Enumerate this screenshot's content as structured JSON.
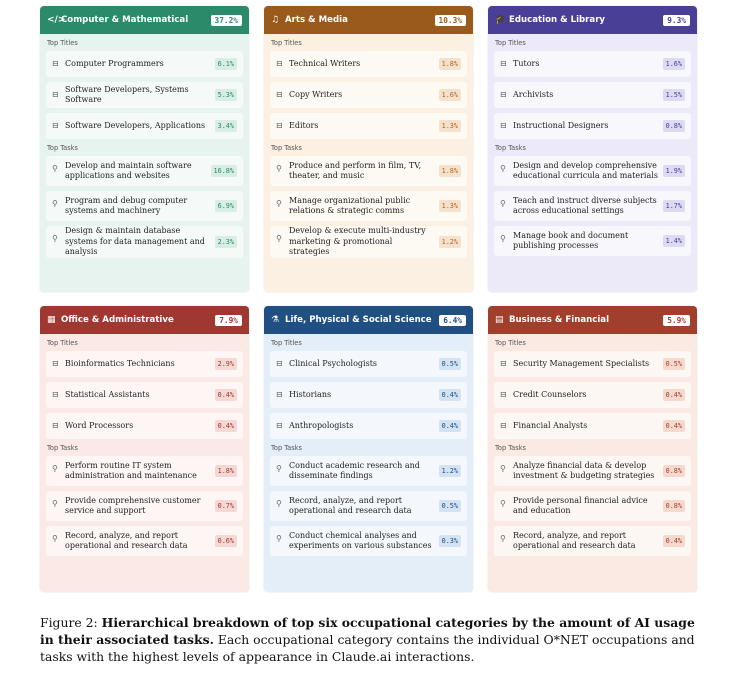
{
  "colors": {
    "computer": {
      "head": "#2a8a6a",
      "bg": "#e7f3ee",
      "accent": "#2a8a6a",
      "chip": "#d8ede4"
    },
    "arts": {
      "head": "#9a5a1c",
      "bg": "#fbf0e2",
      "accent": "#b0662a",
      "chip": "#f6e2cc"
    },
    "education": {
      "head": "#4a3f96",
      "bg": "#eceaf8",
      "accent": "#4a3f96",
      "chip": "#dddaf3"
    },
    "office": {
      "head": "#a03832",
      "bg": "#fbe9e6",
      "accent": "#a03832",
      "chip": "#f5d8d4"
    },
    "life": {
      "head": "#204f83",
      "bg": "#e4eef8",
      "accent": "#204f83",
      "chip": "#d3e3f3"
    },
    "business": {
      "head": "#a0402c",
      "bg": "#fbeae4",
      "accent": "#a0402c",
      "chip": "#f5d9cf"
    }
  },
  "labels": {
    "top_titles": "Top Titles",
    "top_tasks": "Top Tasks"
  },
  "categories": [
    {
      "name": "Computer & Mathematical",
      "pct": "37.2%",
      "icon": "code-icon",
      "glyph": "</>",
      "titles": [
        {
          "text": "Computer Programmers",
          "value": "6.1%"
        },
        {
          "text": "Software Developers, Systems Software",
          "value": "5.3%"
        },
        {
          "text": "Software Developers, Applications",
          "value": "3.4%"
        }
      ],
      "tasks": [
        {
          "text": "Develop and maintain software applications and websites",
          "value": "16.8%"
        },
        {
          "text": "Program and debug computer systems and machinery",
          "value": "6.9%"
        },
        {
          "text": "Design & maintain database systems for data management and analysis",
          "value": "2.3%"
        }
      ]
    },
    {
      "name": "Arts & Media",
      "pct": "10.3%",
      "icon": "music-note-icon",
      "glyph": "♫",
      "titles": [
        {
          "text": "Technical Writers",
          "value": "1.8%"
        },
        {
          "text": "Copy Writers",
          "value": "1.6%"
        },
        {
          "text": "Editors",
          "value": "1.3%"
        }
      ],
      "tasks": [
        {
          "text": "Produce and perform in film, TV, theater, and music",
          "value": "1.8%"
        },
        {
          "text": "Manage organizational public relations & strategic comms",
          "value": "1.3%"
        },
        {
          "text": "Develop & execute multi-industry marketing & promotional strategies",
          "value": "1.2%"
        }
      ]
    },
    {
      "name": "Education & Library",
      "pct": "9.3%",
      "icon": "graduation-cap-icon",
      "glyph": "🎓",
      "titles": [
        {
          "text": "Tutors",
          "value": "1.6%"
        },
        {
          "text": "Archivists",
          "value": "1.5%"
        },
        {
          "text": "Instructional Designers",
          "value": "0.8%"
        }
      ],
      "tasks": [
        {
          "text": "Design and develop comprehensive educational curricula and materials",
          "value": "1.9%"
        },
        {
          "text": "Teach and instruct diverse subjects across educational settings",
          "value": "1.7%"
        },
        {
          "text": "Manage book and document publishing processes",
          "value": "1.4%"
        }
      ]
    },
    {
      "name": "Office & Administrative",
      "pct": "7.9%",
      "icon": "building-icon",
      "glyph": "▦",
      "titles": [
        {
          "text": "Bioinformatics Technicians",
          "value": "2.9%"
        },
        {
          "text": "Statistical Assistants",
          "value": "0.4%"
        },
        {
          "text": "Word Processors",
          "value": "0.4%"
        }
      ],
      "tasks": [
        {
          "text": "Perform routine IT system administration and maintenance",
          "value": "1.8%"
        },
        {
          "text": "Provide comprehensive customer service and support",
          "value": "0.7%"
        },
        {
          "text": "Record, analyze, and report operational and research data",
          "value": "0.6%"
        }
      ]
    },
    {
      "name": "Life, Physical & Social Science",
      "pct": "6.4%",
      "icon": "flask-icon",
      "glyph": "⚗",
      "titles": [
        {
          "text": "Clinical Psychologists",
          "value": "0.5%"
        },
        {
          "text": "Historians",
          "value": "0.4%"
        },
        {
          "text": "Anthropologists",
          "value": "0.4%"
        }
      ],
      "tasks": [
        {
          "text": "Conduct academic research and disseminate findings",
          "value": "1.2%"
        },
        {
          "text": "Record, analyze, and report operational and research data",
          "value": "0.5%"
        },
        {
          "text": "Conduct chemical analyses and experiments on various substances",
          "value": "0.3%"
        }
      ]
    },
    {
      "name": "Business & Financial",
      "pct": "5.9%",
      "icon": "finance-chart-icon",
      "glyph": "▤",
      "titles": [
        {
          "text": "Security Management Specialists",
          "value": "0.5%"
        },
        {
          "text": "Credit Counselors",
          "value": "0.4%"
        },
        {
          "text": "Financial Analysts",
          "value": "0.4%"
        }
      ],
      "tasks": [
        {
          "text": "Analyze financial data & develop investment & budgeting strategies",
          "value": "0.8%"
        },
        {
          "text": "Provide personal financial advice and education",
          "value": "0.8%"
        },
        {
          "text": "Record, analyze, and report operational and research data",
          "value": "0.4%"
        }
      ]
    }
  ],
  "caption": {
    "prefix": "Figure 2: ",
    "bold": "Hierarchical breakdown of top six occupational categories by the amount of AI usage in their associated tasks.",
    "rest": " Each occupational category contains the individual O*NET occupations and tasks with the highest levels of appearance in Claude.ai interactions."
  }
}
